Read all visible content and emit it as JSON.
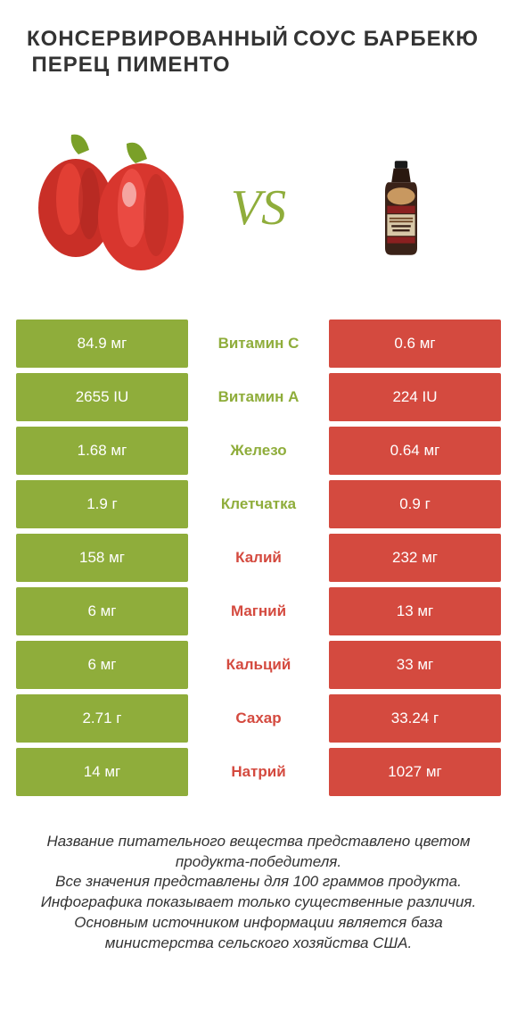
{
  "header": {
    "left_title": "КОНСЕРВИРОВАННЫЙ ПЕРЕЦ ПИМЕНТО",
    "right_title": "СОУС БАРБЕКЮ",
    "vs_label": "VS"
  },
  "colors": {
    "green": "#8fad3b",
    "red": "#d44a3f",
    "neutral_bg": "#ffffff",
    "text": "#333333"
  },
  "comparison": {
    "rows": [
      {
        "left": "84.9 мг",
        "label": "Витамин C",
        "right": "0.6 мг",
        "winner": "left"
      },
      {
        "left": "2655 IU",
        "label": "Витамин A",
        "right": "224 IU",
        "winner": "left"
      },
      {
        "left": "1.68 мг",
        "label": "Железо",
        "right": "0.64 мг",
        "winner": "left"
      },
      {
        "left": "1.9 г",
        "label": "Клетчатка",
        "right": "0.9 г",
        "winner": "left"
      },
      {
        "left": "158 мг",
        "label": "Калий",
        "right": "232 мг",
        "winner": "right"
      },
      {
        "left": "6 мг",
        "label": "Магний",
        "right": "13 мг",
        "winner": "right"
      },
      {
        "left": "6 мг",
        "label": "Кальций",
        "right": "33 мг",
        "winner": "right"
      },
      {
        "left": "2.71 г",
        "label": "Сахар",
        "right": "33.24 г",
        "winner": "right"
      },
      {
        "left": "14 мг",
        "label": "Натрий",
        "right": "1027 мг",
        "winner": "right"
      }
    ]
  },
  "footer": {
    "line1": "Название питательного вещества представлено цветом продукта-победителя.",
    "line2": "Все значения представлены для 100 граммов продукта.",
    "line3": "Инфографика показывает только существенные различия.",
    "line4": "Основным источником информации является база министерства сельского хозяйства США."
  },
  "typography": {
    "title_fontsize": 24,
    "vs_fontsize": 56,
    "cell_fontsize": 17,
    "footer_fontsize": 17
  }
}
